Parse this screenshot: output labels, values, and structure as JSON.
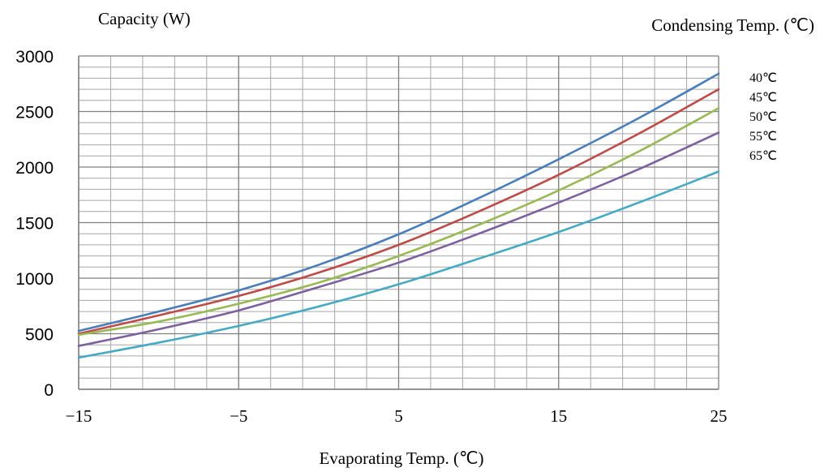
{
  "chart_data": {
    "type": "line",
    "ylabel": "Capacity (W)",
    "xlabel": "Evaporating Temp. (℃)",
    "legend_title": "Condensing Temp. (℃)",
    "legend_position": "right",
    "xlim": [
      -15,
      25
    ],
    "ylim": [
      0,
      3000
    ],
    "x_ticks": [
      -15,
      -5,
      5,
      15,
      25
    ],
    "x_tick_labels": [
      "−15",
      "−5",
      "5",
      "15",
      "25"
    ],
    "y_ticks": [
      0,
      500,
      1000,
      1500,
      2000,
      2500,
      3000
    ],
    "y_tick_labels": [
      "0",
      "500",
      "1000",
      "1500",
      "2000",
      "2500",
      "3000"
    ],
    "grid": true,
    "x": [
      -15,
      -10,
      -5,
      0,
      5,
      10,
      15,
      20,
      25
    ],
    "series": [
      {
        "name": "40℃",
        "color": "#4a7ebb",
        "values": [
          525,
          700,
          890,
          1120,
          1395,
          1720,
          2070,
          2440,
          2840
        ]
      },
      {
        "name": "45℃",
        "color": "#be4b48",
        "values": [
          500,
          665,
          840,
          1050,
          1300,
          1600,
          1930,
          2300,
          2700
        ]
      },
      {
        "name": "50℃",
        "color": "#98b954",
        "values": [
          490,
          610,
          770,
          960,
          1200,
          1480,
          1790,
          2140,
          2530
        ]
      },
      {
        "name": "55℃",
        "color": "#7d60a0",
        "values": [
          390,
          540,
          710,
          920,
          1140,
          1400,
          1680,
          1980,
          2310
        ]
      },
      {
        "name": "65℃",
        "color": "#46aac5",
        "values": [
          285,
          420,
          570,
          745,
          945,
          1175,
          1415,
          1680,
          1960
        ]
      }
    ]
  }
}
